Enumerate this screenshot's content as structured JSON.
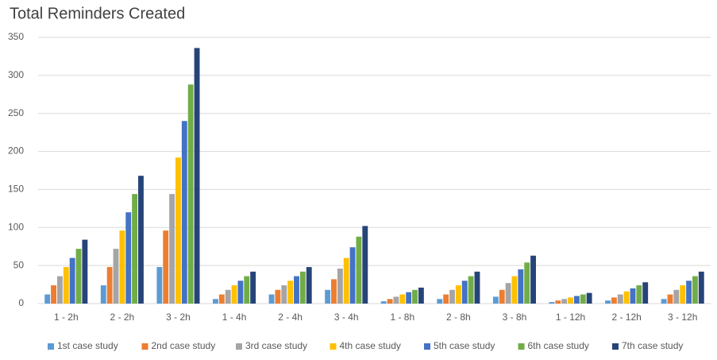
{
  "chart_data": {
    "type": "bar",
    "title": "Total Reminders Created",
    "categories": [
      "1 - 2h",
      "2 - 2h",
      "3 - 2h",
      "1 - 4h",
      "2 - 4h",
      "3 - 4h",
      "1 - 8h",
      "2 - 8h",
      "3 - 8h",
      "1 - 12h",
      "2 - 12h",
      "3 - 12h"
    ],
    "series": [
      {
        "name": "1st case study",
        "color": "#5b9bd5",
        "values": [
          12,
          24,
          48,
          6,
          12,
          18,
          3,
          6,
          9,
          2,
          4,
          6
        ]
      },
      {
        "name": "2nd case study",
        "color": "#ed7d31",
        "values": [
          24,
          48,
          96,
          12,
          18,
          32,
          6,
          12,
          18,
          4,
          8,
          12
        ]
      },
      {
        "name": "3rd case study",
        "color": "#a5a5a5",
        "values": [
          36,
          72,
          144,
          18,
          24,
          46,
          9,
          18,
          27,
          6,
          12,
          18
        ]
      },
      {
        "name": "4th case study",
        "color": "#ffc000",
        "values": [
          48,
          96,
          192,
          24,
          30,
          60,
          12,
          24,
          36,
          8,
          16,
          24
        ]
      },
      {
        "name": "5th case study",
        "color": "#4472c4",
        "values": [
          60,
          120,
          240,
          30,
          36,
          74,
          15,
          30,
          45,
          10,
          20,
          30
        ]
      },
      {
        "name": "6th case study",
        "color": "#70ad47",
        "values": [
          72,
          144,
          288,
          36,
          42,
          88,
          18,
          36,
          54,
          12,
          24,
          36
        ]
      },
      {
        "name": "7th case study",
        "color": "#264478",
        "values": [
          84,
          168,
          336,
          42,
          48,
          102,
          21,
          42,
          63,
          14,
          28,
          42
        ]
      }
    ],
    "ylim": [
      0,
      350
    ],
    "yticks": [
      0,
      50,
      100,
      150,
      200,
      250,
      300,
      350
    ],
    "grid": true,
    "legend": "bottom"
  }
}
